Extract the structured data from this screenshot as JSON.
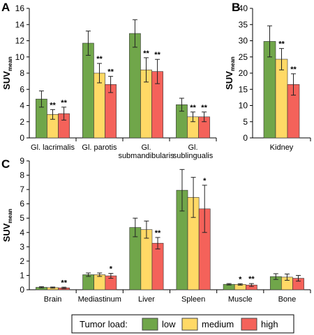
{
  "colors": {
    "low": "#70a64a",
    "medium": "#ffd966",
    "high": "#f4625a"
  },
  "legend": {
    "title": "Tumor load:",
    "items": [
      {
        "key": "low",
        "label": "low"
      },
      {
        "key": "medium",
        "label": "medium"
      },
      {
        "key": "high",
        "label": "high"
      }
    ]
  },
  "chart_data": [
    {
      "panel": "A",
      "type": "bar",
      "ylabel_main": "SUV",
      "ylabel_sub": "mean",
      "ylim": [
        0,
        16
      ],
      "yticks": [
        0,
        2,
        4,
        6,
        8,
        10,
        12,
        14,
        16
      ],
      "categories": [
        [
          "Gl. lacrimalis"
        ],
        [
          "Gl. parotis"
        ],
        [
          "Gl.",
          "submandibularis"
        ],
        [
          "Gl.",
          "sublingualis"
        ]
      ],
      "series": [
        {
          "name": "low",
          "values": [
            4.8,
            11.7,
            12.9,
            4.1
          ],
          "err": [
            1.0,
            1.5,
            1.7,
            0.8
          ],
          "marks": [
            "",
            "",
            "",
            ""
          ]
        },
        {
          "name": "medium",
          "values": [
            2.9,
            8.0,
            8.4,
            2.6
          ],
          "err": [
            0.6,
            1.2,
            1.5,
            0.6
          ],
          "marks": [
            "**",
            "**",
            "**",
            "**"
          ]
        },
        {
          "name": "high",
          "values": [
            3.0,
            6.6,
            8.2,
            2.6
          ],
          "err": [
            0.8,
            1.0,
            1.5,
            0.6
          ],
          "marks": [
            "**",
            "**",
            "**",
            "**"
          ]
        }
      ]
    },
    {
      "panel": "B",
      "type": "bar",
      "ylabel_main": "SUV",
      "ylabel_sub": "mean",
      "ylim": [
        0,
        40
      ],
      "yticks": [
        0,
        5,
        10,
        15,
        20,
        25,
        30,
        35,
        40
      ],
      "categories": [
        [
          "Kidney"
        ]
      ],
      "series": [
        {
          "name": "low",
          "values": [
            29.8
          ],
          "err": [
            4.8
          ],
          "marks": [
            ""
          ]
        },
        {
          "name": "medium",
          "values": [
            24.3
          ],
          "err": [
            3.3
          ],
          "marks": [
            "**"
          ]
        },
        {
          "name": "high",
          "values": [
            16.5
          ],
          "err": [
            3.3
          ],
          "marks": [
            "**"
          ]
        }
      ]
    },
    {
      "panel": "C",
      "type": "bar",
      "ylabel_main": "SUV",
      "ylabel_sub": "mean",
      "ylim": [
        0,
        9
      ],
      "yticks": [
        0,
        1,
        2,
        3,
        4,
        5,
        6,
        7,
        8,
        9
      ],
      "categories": [
        [
          "Brain"
        ],
        [
          "Mediastinum"
        ],
        [
          "Liver"
        ],
        [
          "Spleen"
        ],
        [
          "Muscle"
        ],
        [
          "Bone"
        ]
      ],
      "series": [
        {
          "name": "low",
          "values": [
            0.17,
            1.05,
            4.35,
            6.95,
            0.38,
            0.92
          ],
          "err": [
            0.04,
            0.12,
            0.65,
            1.45,
            0.05,
            0.2
          ],
          "marks": [
            "",
            "",
            "",
            "",
            "",
            ""
          ]
        },
        {
          "name": "medium",
          "values": [
            0.15,
            1.05,
            4.2,
            6.45,
            0.37,
            0.88
          ],
          "err": [
            0.04,
            0.12,
            0.6,
            1.4,
            0.05,
            0.22
          ],
          "marks": [
            "",
            "",
            "",
            "",
            "*",
            ""
          ]
        },
        {
          "name": "high",
          "values": [
            0.13,
            0.97,
            3.25,
            5.65,
            0.33,
            0.8
          ],
          "err": [
            0.05,
            0.17,
            0.4,
            1.65,
            0.1,
            0.2
          ],
          "marks": [
            "**",
            "*",
            "**",
            "*",
            "**",
            ""
          ]
        }
      ]
    }
  ]
}
